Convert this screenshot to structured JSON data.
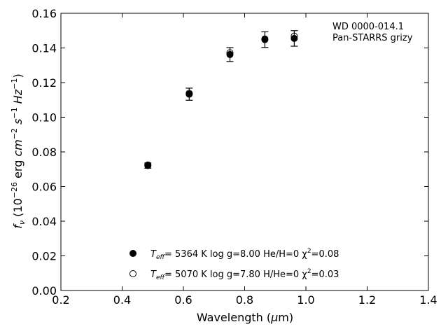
{
  "chart_data": {
    "type": "scatter",
    "annotation": [
      "WD 0000-014.1",
      "Pan-STARRS grizy"
    ],
    "xlabel": "Wavelength (μm)",
    "ylabel": "fν (10−26 erg cm−2 s−1 Hz−1)",
    "xlim": [
      0.2,
      1.4
    ],
    "ylim": [
      0.0,
      0.16
    ],
    "xticks": [
      0.2,
      0.4,
      0.6,
      0.8,
      1.0,
      1.2,
      1.4
    ],
    "yticks": [
      0.0,
      0.02,
      0.04,
      0.06,
      0.08,
      0.1,
      0.12,
      0.14,
      0.16
    ],
    "xtick_labels": [
      "0.2",
      "0.4",
      "0.6",
      "0.8",
      "1.0",
      "1.2",
      "1.4"
    ],
    "ytick_labels": [
      "0.00",
      "0.02",
      "0.04",
      "0.06",
      "0.08",
      "0.10",
      "0.12",
      "0.14",
      "0.16"
    ],
    "grid": false,
    "legend_position": "bottom-center",
    "series": [
      {
        "name": "Teff= 5364 K log g=8.00 He/H=0 χ2=0.08",
        "marker": "filled-circle",
        "color": "#000000",
        "x": [
          0.484,
          0.619,
          0.752,
          0.866,
          0.962
        ],
        "y": [
          0.0721,
          0.1133,
          0.1362,
          0.1448,
          0.1455
        ],
        "yerr": [
          0.0015,
          0.0035,
          0.004,
          0.0045,
          0.0045
        ]
      },
      {
        "name": "Teff= 5070 K log g=7.80 H/He=0 χ2=0.03",
        "marker": "open-circle",
        "color": "#000000",
        "x": [
          0.484,
          0.619,
          0.752,
          0.866,
          0.962
        ],
        "y": [
          0.0725,
          0.1138,
          0.1372,
          0.1452,
          0.1468
        ]
      }
    ],
    "legend": [
      {
        "teff_label": "T",
        "teff_sub": "eff",
        "text": "=  5364 K  log g=8.00  He/H=0  χ",
        "chi_sup": "2",
        "chi_val": "=0.08"
      },
      {
        "teff_label": "T",
        "teff_sub": "eff",
        "text": "=  5070 K  log g=7.80  H/He=0  χ",
        "chi_sup": "2",
        "chi_val": "=0.03"
      }
    ]
  }
}
